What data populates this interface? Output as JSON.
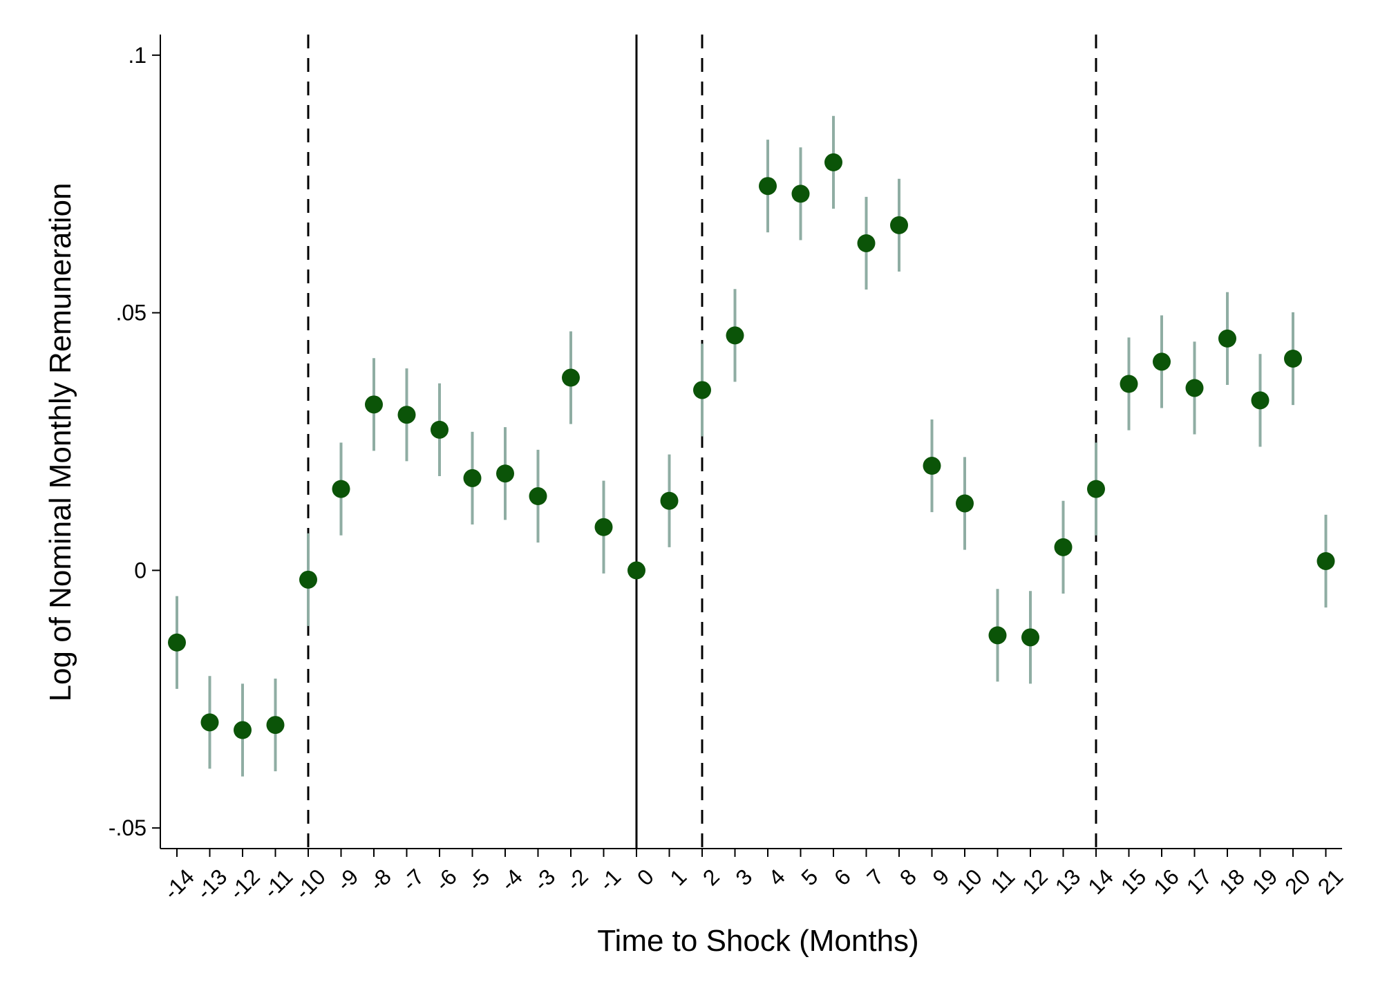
{
  "chart_data": {
    "type": "scatter",
    "xlabel": "Time to Shock (Months)",
    "ylabel": "Log of Nominal Monthly Remuneration",
    "x": [
      -14,
      -13,
      -12,
      -11,
      -10,
      -9,
      -8,
      -7,
      -6,
      -5,
      -4,
      -3,
      -2,
      -1,
      0,
      1,
      2,
      3,
      4,
      5,
      6,
      7,
      8,
      9,
      10,
      11,
      12,
      13,
      14,
      15,
      16,
      17,
      18,
      19,
      20,
      21
    ],
    "y": [
      -0.014,
      -0.0295,
      -0.031,
      -0.03,
      -0.0018,
      0.0158,
      0.0322,
      0.0302,
      0.0273,
      0.0179,
      0.0188,
      0.0144,
      0.0374,
      0.0084,
      0.0,
      0.0135,
      0.035,
      0.0456,
      0.0746,
      0.0731,
      0.0792,
      0.0635,
      0.067,
      0.0203,
      0.013,
      -0.0126,
      -0.013,
      0.0045,
      0.0158,
      0.0362,
      0.0405,
      0.0354,
      0.045,
      0.033,
      0.0411,
      0.0018
    ],
    "ci_low": [
      -0.023,
      -0.0385,
      -0.04,
      -0.039,
      -0.0108,
      0.0068,
      0.0232,
      0.0212,
      0.0183,
      0.0089,
      0.0098,
      0.0054,
      0.0284,
      -0.0006,
      0.0,
      0.0045,
      0.026,
      0.0366,
      0.0656,
      0.0641,
      0.0702,
      0.0545,
      0.058,
      0.0113,
      0.004,
      -0.0216,
      -0.022,
      -0.0045,
      0.0068,
      0.0272,
      0.0315,
      0.0264,
      0.036,
      0.024,
      0.0321,
      -0.0072
    ],
    "ci_high": [
      -0.005,
      -0.0205,
      -0.022,
      -0.021,
      0.0072,
      0.0248,
      0.0412,
      0.0392,
      0.0363,
      0.0269,
      0.0278,
      0.0234,
      0.0464,
      0.0174,
      0.0,
      0.0225,
      0.044,
      0.0546,
      0.0836,
      0.0821,
      0.0882,
      0.0725,
      0.076,
      0.0293,
      0.022,
      -0.0036,
      -0.004,
      0.0135,
      0.0248,
      0.0452,
      0.0495,
      0.0444,
      0.054,
      0.042,
      0.0501,
      0.0108
    ],
    "ylim": [
      -0.054,
      0.104
    ],
    "xlim": [
      -14.5,
      21.5
    ],
    "y_ticks": [
      {
        "value": -0.05,
        "label": "-.05"
      },
      {
        "value": 0,
        "label": "0"
      },
      {
        "value": 0.05,
        "label": ".05"
      },
      {
        "value": 0.1,
        "label": ".1"
      }
    ],
    "x_tick_labels": [
      "-14",
      "-13",
      "-12",
      "-11",
      "-10",
      "-9",
      "-8",
      "-7",
      "-6",
      "-5",
      "-4",
      "-3",
      "-2",
      "-1",
      "0",
      "1",
      "2",
      "3",
      "4",
      "5",
      "6",
      "7",
      "8",
      "9",
      "10",
      "11",
      "12",
      "13",
      "14",
      "15",
      "16",
      "17",
      "18",
      "19",
      "20",
      "21"
    ],
    "vlines": [
      {
        "x": -10,
        "style": "dashed"
      },
      {
        "x": 0,
        "style": "solid"
      },
      {
        "x": 2,
        "style": "dashed"
      },
      {
        "x": 14,
        "style": "dashed"
      }
    ],
    "grid": false,
    "colors": {
      "point": "#0b5408",
      "ci": "#8fada3",
      "axis": "#000000"
    }
  }
}
